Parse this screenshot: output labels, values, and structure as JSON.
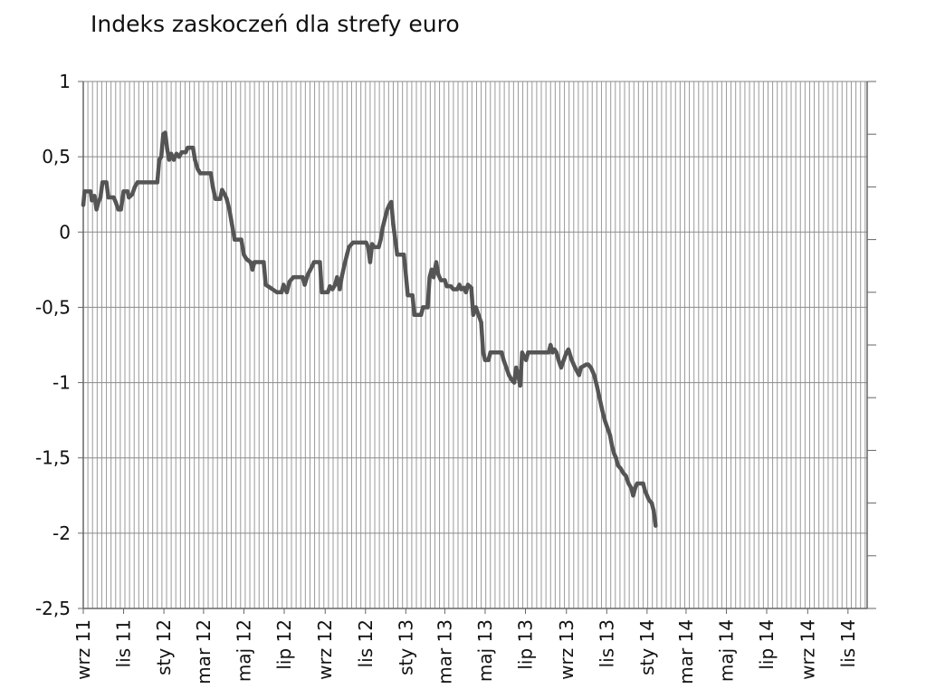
{
  "chart_data": {
    "type": "line",
    "title": "Indeks zaskoczeń dla strefy euro",
    "xlabel": "",
    "ylabel": "",
    "ylim": [
      -2.5,
      1
    ],
    "yticks": [
      {
        "value": 1,
        "label": "1"
      },
      {
        "value": 0.5,
        "label": "0,5"
      },
      {
        "value": 0,
        "label": "0"
      },
      {
        "value": -0.5,
        "label": "-0,5"
      },
      {
        "value": -1,
        "label": "-1"
      },
      {
        "value": -1.5,
        "label": "-1,5"
      },
      {
        "value": -2,
        "label": "-2"
      },
      {
        "value": -2.5,
        "label": "-2,5"
      }
    ],
    "xlim": [
      "2011-09-01",
      "2014-11-30"
    ],
    "xticks": [
      {
        "date": "2011-09-01",
        "label": "wrz 11"
      },
      {
        "date": "2011-11-01",
        "label": "lis 11"
      },
      {
        "date": "2012-01-01",
        "label": "sty 12"
      },
      {
        "date": "2012-03-01",
        "label": "mar 12"
      },
      {
        "date": "2012-05-01",
        "label": "maj 12"
      },
      {
        "date": "2012-07-01",
        "label": "lip 12"
      },
      {
        "date": "2012-09-01",
        "label": "wrz 12"
      },
      {
        "date": "2012-11-01",
        "label": "lis 12"
      },
      {
        "date": "2013-01-01",
        "label": "sty 13"
      },
      {
        "date": "2013-03-01",
        "label": "mar 13"
      },
      {
        "date": "2013-05-01",
        "label": "maj 13"
      },
      {
        "date": "2013-07-01",
        "label": "lip 13"
      },
      {
        "date": "2013-09-01",
        "label": "wrz 13"
      },
      {
        "date": "2013-11-01",
        "label": "lis 13"
      },
      {
        "date": "2014-01-01",
        "label": "sty 14"
      },
      {
        "date": "2014-03-01",
        "label": "mar 14"
      },
      {
        "date": "2014-05-01",
        "label": "maj 14"
      },
      {
        "date": "2014-07-01",
        "label": "lip 14"
      },
      {
        "date": "2014-09-01",
        "label": "wrz 14"
      },
      {
        "date": "2014-11-01",
        "label": "lis 14"
      }
    ],
    "grid": true,
    "legend": "none",
    "series": [
      {
        "color": "#555555",
        "points": [
          [
            "2011-09-01",
            0.18
          ],
          [
            "2011-09-03",
            0.27
          ],
          [
            "2011-09-12",
            0.27
          ],
          [
            "2011-09-14",
            0.21
          ],
          [
            "2011-09-18",
            0.24
          ],
          [
            "2011-09-21",
            0.15
          ],
          [
            "2011-09-24",
            0.2
          ],
          [
            "2011-09-27",
            0.23
          ],
          [
            "2011-09-30",
            0.33
          ],
          [
            "2011-10-06",
            0.33
          ],
          [
            "2011-10-09",
            0.23
          ],
          [
            "2011-10-17",
            0.23
          ],
          [
            "2011-10-20",
            0.2
          ],
          [
            "2011-10-24",
            0.15
          ],
          [
            "2011-10-28",
            0.15
          ],
          [
            "2011-11-01",
            0.27
          ],
          [
            "2011-11-07",
            0.27
          ],
          [
            "2011-11-09",
            0.23
          ],
          [
            "2011-11-14",
            0.25
          ],
          [
            "2011-11-18",
            0.3
          ],
          [
            "2011-11-22",
            0.33
          ],
          [
            "2011-12-22",
            0.33
          ],
          [
            "2011-12-25",
            0.48
          ],
          [
            "2011-12-28",
            0.5
          ],
          [
            "2011-12-31",
            0.65
          ],
          [
            "2012-01-03",
            0.66
          ],
          [
            "2012-01-06",
            0.55
          ],
          [
            "2012-01-09",
            0.48
          ],
          [
            "2012-01-12",
            0.52
          ],
          [
            "2012-01-16",
            0.48
          ],
          [
            "2012-01-20",
            0.52
          ],
          [
            "2012-01-24",
            0.5
          ],
          [
            "2012-01-28",
            0.53
          ],
          [
            "2012-02-03",
            0.53
          ],
          [
            "2012-02-06",
            0.56
          ],
          [
            "2012-02-14",
            0.56
          ],
          [
            "2012-02-17",
            0.48
          ],
          [
            "2012-02-21",
            0.42
          ],
          [
            "2012-02-25",
            0.39
          ],
          [
            "2012-03-12",
            0.39
          ],
          [
            "2012-03-15",
            0.3
          ],
          [
            "2012-03-19",
            0.22
          ],
          [
            "2012-03-26",
            0.22
          ],
          [
            "2012-03-29",
            0.28
          ],
          [
            "2012-04-02",
            0.25
          ],
          [
            "2012-04-05",
            0.22
          ],
          [
            "2012-04-09",
            0.15
          ],
          [
            "2012-04-13",
            0.05
          ],
          [
            "2012-04-17",
            -0.05
          ],
          [
            "2012-04-27",
            -0.05
          ],
          [
            "2012-05-01",
            -0.15
          ],
          [
            "2012-05-05",
            -0.18
          ],
          [
            "2012-05-11",
            -0.2
          ],
          [
            "2012-05-14",
            -0.25
          ],
          [
            "2012-05-17",
            -0.2
          ],
          [
            "2012-05-31",
            -0.2
          ],
          [
            "2012-06-03",
            -0.35
          ],
          [
            "2012-06-10",
            -0.37
          ],
          [
            "2012-06-20",
            -0.4
          ],
          [
            "2012-06-27",
            -0.4
          ],
          [
            "2012-06-30",
            -0.35
          ],
          [
            "2012-07-05",
            -0.4
          ],
          [
            "2012-07-09",
            -0.33
          ],
          [
            "2012-07-15",
            -0.3
          ],
          [
            "2012-07-29",
            -0.3
          ],
          [
            "2012-08-01",
            -0.35
          ],
          [
            "2012-08-06",
            -0.28
          ],
          [
            "2012-08-12",
            -0.23
          ],
          [
            "2012-08-15",
            -0.2
          ],
          [
            "2012-08-24",
            -0.2
          ],
          [
            "2012-08-27",
            -0.4
          ],
          [
            "2012-09-05",
            -0.4
          ],
          [
            "2012-09-08",
            -0.36
          ],
          [
            "2012-09-12",
            -0.38
          ],
          [
            "2012-09-16",
            -0.35
          ],
          [
            "2012-09-19",
            -0.3
          ],
          [
            "2012-09-23",
            -0.38
          ],
          [
            "2012-09-26",
            -0.3
          ],
          [
            "2012-09-30",
            -0.22
          ],
          [
            "2012-10-04",
            -0.15
          ],
          [
            "2012-10-07",
            -0.1
          ],
          [
            "2012-10-13",
            -0.07
          ],
          [
            "2012-11-02",
            -0.07
          ],
          [
            "2012-11-05",
            -0.1
          ],
          [
            "2012-11-08",
            -0.2
          ],
          [
            "2012-11-11",
            -0.08
          ],
          [
            "2012-11-14",
            -0.1
          ],
          [
            "2012-11-21",
            -0.1
          ],
          [
            "2012-11-24",
            -0.05
          ],
          [
            "2012-11-27",
            0.03
          ],
          [
            "2012-12-01",
            0.1
          ],
          [
            "2012-12-04",
            0.15
          ],
          [
            "2012-12-07",
            0.18
          ],
          [
            "2012-12-10",
            0.2
          ],
          [
            "2012-12-13",
            0.05
          ],
          [
            "2012-12-16",
            -0.05
          ],
          [
            "2012-12-19",
            -0.15
          ],
          [
            "2012-12-29",
            -0.15
          ],
          [
            "2013-01-01",
            -0.28
          ],
          [
            "2013-01-04",
            -0.42
          ],
          [
            "2013-01-11",
            -0.42
          ],
          [
            "2013-01-14",
            -0.55
          ],
          [
            "2013-01-24",
            -0.55
          ],
          [
            "2013-01-27",
            -0.5
          ],
          [
            "2013-02-03",
            -0.5
          ],
          [
            "2013-02-06",
            -0.3
          ],
          [
            "2013-02-09",
            -0.25
          ],
          [
            "2013-02-12",
            -0.3
          ],
          [
            "2013-02-16",
            -0.2
          ],
          [
            "2013-02-19",
            -0.28
          ],
          [
            "2013-02-23",
            -0.32
          ],
          [
            "2013-03-01",
            -0.32
          ],
          [
            "2013-03-04",
            -0.36
          ],
          [
            "2013-03-10",
            -0.36
          ],
          [
            "2013-03-14",
            -0.38
          ],
          [
            "2013-03-20",
            -0.38
          ],
          [
            "2013-03-23",
            -0.35
          ],
          [
            "2013-03-26",
            -0.38
          ],
          [
            "2013-03-30",
            -0.37
          ],
          [
            "2013-04-02",
            -0.4
          ],
          [
            "2013-04-05",
            -0.35
          ],
          [
            "2013-04-10",
            -0.37
          ],
          [
            "2013-04-13",
            -0.55
          ],
          [
            "2013-04-17",
            -0.5
          ],
          [
            "2013-04-21",
            -0.55
          ],
          [
            "2013-04-25",
            -0.6
          ],
          [
            "2013-04-28",
            -0.8
          ],
          [
            "2013-05-01",
            -0.85
          ],
          [
            "2013-05-06",
            -0.85
          ],
          [
            "2013-05-09",
            -0.8
          ],
          [
            "2013-05-26",
            -0.8
          ],
          [
            "2013-05-29",
            -0.85
          ],
          [
            "2013-06-02",
            -0.9
          ],
          [
            "2013-06-06",
            -0.95
          ],
          [
            "2013-06-10",
            -0.98
          ],
          [
            "2013-06-14",
            -1.0
          ],
          [
            "2013-06-17",
            -0.9
          ],
          [
            "2013-06-20",
            -0.95
          ],
          [
            "2013-06-23",
            -1.02
          ],
          [
            "2013-06-26",
            -0.8
          ],
          [
            "2013-06-29",
            -0.83
          ],
          [
            "2013-07-02",
            -0.85
          ],
          [
            "2013-07-05",
            -0.8
          ],
          [
            "2013-08-05",
            -0.8
          ],
          [
            "2013-08-08",
            -0.75
          ],
          [
            "2013-08-11",
            -0.8
          ],
          [
            "2013-08-14",
            -0.78
          ],
          [
            "2013-08-17",
            -0.8
          ],
          [
            "2013-08-20",
            -0.85
          ],
          [
            "2013-08-24",
            -0.9
          ],
          [
            "2013-08-28",
            -0.85
          ],
          [
            "2013-09-01",
            -0.8
          ],
          [
            "2013-09-04",
            -0.78
          ],
          [
            "2013-09-09",
            -0.85
          ],
          [
            "2013-09-14",
            -0.9
          ],
          [
            "2013-09-20",
            -0.95
          ],
          [
            "2013-09-23",
            -0.9
          ],
          [
            "2013-10-01",
            -0.88
          ],
          [
            "2013-10-04",
            -0.88
          ],
          [
            "2013-10-08",
            -0.9
          ],
          [
            "2013-10-13",
            -0.95
          ],
          [
            "2013-10-17",
            -1.02
          ],
          [
            "2013-10-21",
            -1.1
          ],
          [
            "2013-10-25",
            -1.18
          ],
          [
            "2013-10-29",
            -1.25
          ],
          [
            "2013-11-02",
            -1.3
          ],
          [
            "2013-11-06",
            -1.35
          ],
          [
            "2013-11-09",
            -1.42
          ],
          [
            "2013-11-12",
            -1.47
          ],
          [
            "2013-11-15",
            -1.5
          ],
          [
            "2013-11-18",
            -1.55
          ],
          [
            "2013-11-22",
            -1.57
          ],
          [
            "2013-11-26",
            -1.6
          ],
          [
            "2013-11-30",
            -1.62
          ],
          [
            "2013-12-04",
            -1.67
          ],
          [
            "2013-12-08",
            -1.7
          ],
          [
            "2013-12-11",
            -1.75
          ],
          [
            "2013-12-14",
            -1.7
          ],
          [
            "2013-12-17",
            -1.67
          ],
          [
            "2013-12-26",
            -1.67
          ],
          [
            "2013-12-29",
            -1.72
          ],
          [
            "2014-01-01",
            -1.75
          ],
          [
            "2014-01-04",
            -1.78
          ],
          [
            "2014-01-08",
            -1.8
          ],
          [
            "2014-01-11",
            -1.85
          ],
          [
            "2014-01-14",
            -1.95
          ]
        ]
      }
    ]
  }
}
